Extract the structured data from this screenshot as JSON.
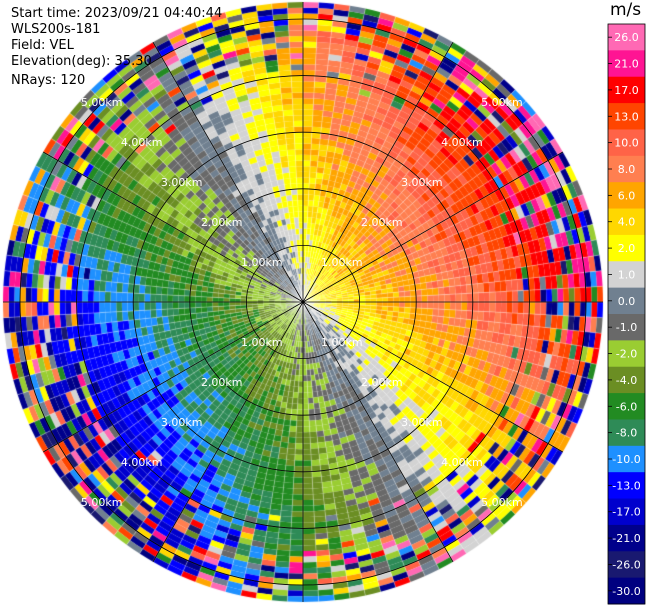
{
  "header": {
    "start_time": "Start time: 2023/09/21 04:40:44",
    "instrument": "WLS200s-181",
    "field": "Field: VEL",
    "elevation": "Elevation(deg): 35.30",
    "nrays": "NRays: 120"
  },
  "chart_data": {
    "type": "heatmap",
    "subtype": "polar-ppi",
    "units": "m/s",
    "n_rays": 120,
    "range_rings_km": [
      1.0,
      2.0,
      3.0,
      4.0,
      5.0
    ],
    "range_ring_labels": [
      "1.00km",
      "2.00km",
      "3.00km",
      "4.00km",
      "5.00km"
    ],
    "max_range_km": 5.3,
    "spoke_interval_deg": 30,
    "pattern": "Velocity field: positive (yellow/orange) toward east and north-east, negative (green/blue) toward west and south-west, near-zero (gray) along the north-west to south-east band; noisy multicolor values beyond about 4 km.",
    "colorbar": {
      "tick_labels": [
        "26.0",
        "21.0",
        "17.0",
        "13.0",
        "10.0",
        "8.0",
        "6.0",
        "4.0",
        "2.0",
        "1.0",
        "0.0",
        "-1.0",
        "-2.0",
        "-4.0",
        "-6.0",
        "-8.0",
        "-10.0",
        "-13.0",
        "-17.0",
        "-21.0",
        "-26.0",
        "-30.0"
      ],
      "colors": [
        "#ff69b4",
        "#ff1493",
        "#ff0000",
        "#ff4500",
        "#ff6347",
        "#ff7f50",
        "#ffa500",
        "#ffd700",
        "#ffff00",
        "#d3d3d3",
        "#708090",
        "#696969",
        "#9acd32",
        "#6b8e23",
        "#228b22",
        "#2e8b57",
        "#1e90ff",
        "#0000ff",
        "#0000cd",
        "#00008b",
        "#191970",
        "#000080"
      ]
    }
  }
}
